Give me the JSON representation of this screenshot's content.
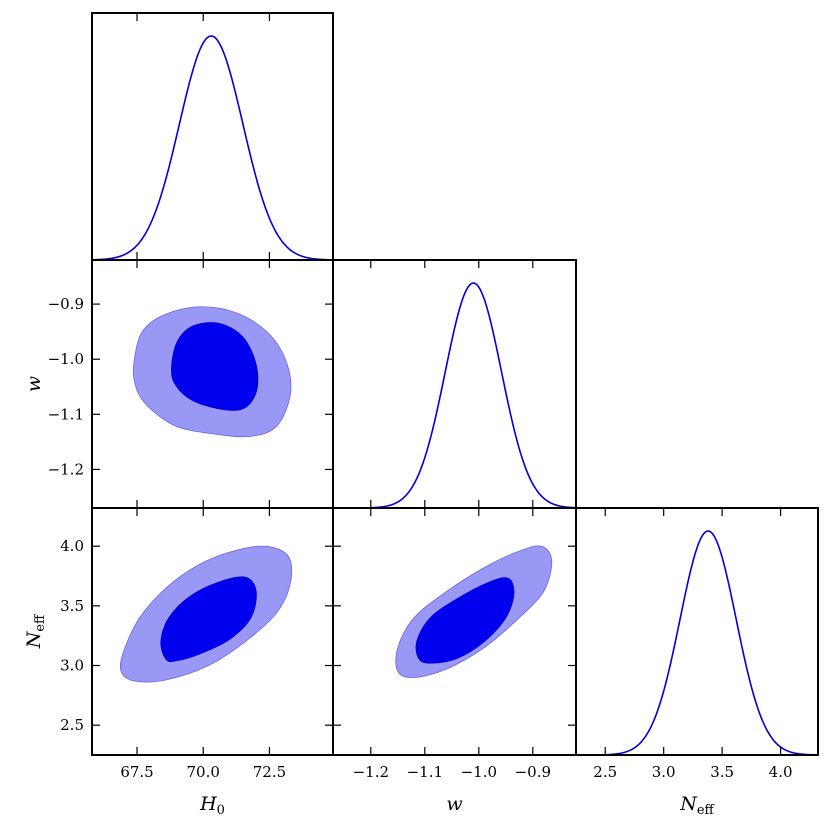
{
  "chart_data": {
    "type": "triangle",
    "parameters": [
      {
        "id": "H0",
        "label": "H",
        "sub": "0",
        "range": [
          65.8,
          74.9
        ],
        "ticks": [
          67.5,
          70.0,
          72.5
        ],
        "tick_labels": [
          "67.5",
          "70.0",
          "72.5"
        ]
      },
      {
        "id": "w",
        "label": "w",
        "sub": "",
        "range": [
          -1.27,
          -0.82
        ],
        "ticks": [
          -1.2,
          -1.1,
          -1.0,
          -0.9
        ],
        "tick_labels": [
          "−1.2",
          "−1.1",
          "−1.0",
          "−0.9"
        ]
      },
      {
        "id": "Neff",
        "label": "N",
        "sub": "eff",
        "range": [
          2.25,
          4.32
        ],
        "ticks": [
          2.5,
          3.0,
          3.5,
          4.0
        ],
        "tick_labels": [
          "2.5",
          "3.0",
          "3.5",
          "4.0"
        ]
      }
    ],
    "marginals": [
      {
        "param": "H0",
        "mean": 70.3,
        "sigma": 1.2
      },
      {
        "param": "w",
        "mean": -1.01,
        "sigma": 0.052
      },
      {
        "param": "Neff",
        "mean": 3.38,
        "sigma": 0.24
      }
    ],
    "contours": [
      {
        "x": "H0",
        "y": "w",
        "levels": [
          "68%",
          "95%"
        ],
        "c68": [
          [
            68.8,
            -1.02
          ],
          [
            69.0,
            -0.97
          ],
          [
            69.6,
            -0.94
          ],
          [
            70.6,
            -0.935
          ],
          [
            71.5,
            -0.96
          ],
          [
            72.0,
            -1.01
          ],
          [
            72.0,
            -1.06
          ],
          [
            71.5,
            -1.09
          ],
          [
            70.6,
            -1.09
          ],
          [
            69.6,
            -1.075
          ],
          [
            69.0,
            -1.05
          ]
        ],
        "c95": [
          [
            67.4,
            -1.0
          ],
          [
            67.7,
            -0.95
          ],
          [
            68.5,
            -0.92
          ],
          [
            69.8,
            -0.905
          ],
          [
            71.2,
            -0.915
          ],
          [
            72.4,
            -0.95
          ],
          [
            73.1,
            -1.0
          ],
          [
            73.3,
            -1.06
          ],
          [
            72.8,
            -1.12
          ],
          [
            71.8,
            -1.14
          ],
          [
            70.3,
            -1.135
          ],
          [
            68.9,
            -1.12
          ],
          [
            67.8,
            -1.08
          ],
          [
            67.4,
            -1.04
          ]
        ]
      },
      {
        "x": "H0",
        "y": "Neff",
        "levels": [
          "68%",
          "95%"
        ],
        "c68": [
          [
            68.6,
            3.05
          ],
          [
            68.4,
            3.2
          ],
          [
            68.7,
            3.4
          ],
          [
            69.5,
            3.58
          ],
          [
            70.6,
            3.7
          ],
          [
            71.6,
            3.74
          ],
          [
            72.0,
            3.62
          ],
          [
            71.8,
            3.4
          ],
          [
            71.0,
            3.22
          ],
          [
            69.9,
            3.1
          ],
          [
            69.0,
            3.04
          ]
        ],
        "c95": [
          [
            66.9,
            2.95
          ],
          [
            67.0,
            3.12
          ],
          [
            67.6,
            3.4
          ],
          [
            68.6,
            3.65
          ],
          [
            69.8,
            3.84
          ],
          [
            71.0,
            3.95
          ],
          [
            72.3,
            4.0
          ],
          [
            73.2,
            3.92
          ],
          [
            73.3,
            3.7
          ],
          [
            72.8,
            3.45
          ],
          [
            71.7,
            3.22
          ],
          [
            70.2,
            3.0
          ],
          [
            68.6,
            2.88
          ],
          [
            67.4,
            2.87
          ]
        ]
      },
      {
        "x": "w",
        "y": "Neff",
        "levels": [
          "68%",
          "95%"
        ],
        "c68": [
          [
            -1.11,
            3.05
          ],
          [
            -1.115,
            3.2
          ],
          [
            -1.09,
            3.4
          ],
          [
            -1.04,
            3.56
          ],
          [
            -0.98,
            3.7
          ],
          [
            -0.945,
            3.73
          ],
          [
            -0.935,
            3.6
          ],
          [
            -0.95,
            3.4
          ],
          [
            -0.99,
            3.2
          ],
          [
            -1.04,
            3.06
          ],
          [
            -1.085,
            3.02
          ]
        ],
        "c95": [
          [
            -1.15,
            2.95
          ],
          [
            -1.15,
            3.15
          ],
          [
            -1.12,
            3.4
          ],
          [
            -1.06,
            3.62
          ],
          [
            -0.99,
            3.82
          ],
          [
            -0.93,
            3.95
          ],
          [
            -0.885,
            4.0
          ],
          [
            -0.865,
            3.88
          ],
          [
            -0.88,
            3.62
          ],
          [
            -0.93,
            3.38
          ],
          [
            -0.99,
            3.15
          ],
          [
            -1.06,
            2.97
          ],
          [
            -1.12,
            2.9
          ]
        ]
      }
    ],
    "colors": {
      "line": "#0000dd",
      "c68": "#0000ee",
      "c95": "#9999f5"
    },
    "grid": false
  }
}
